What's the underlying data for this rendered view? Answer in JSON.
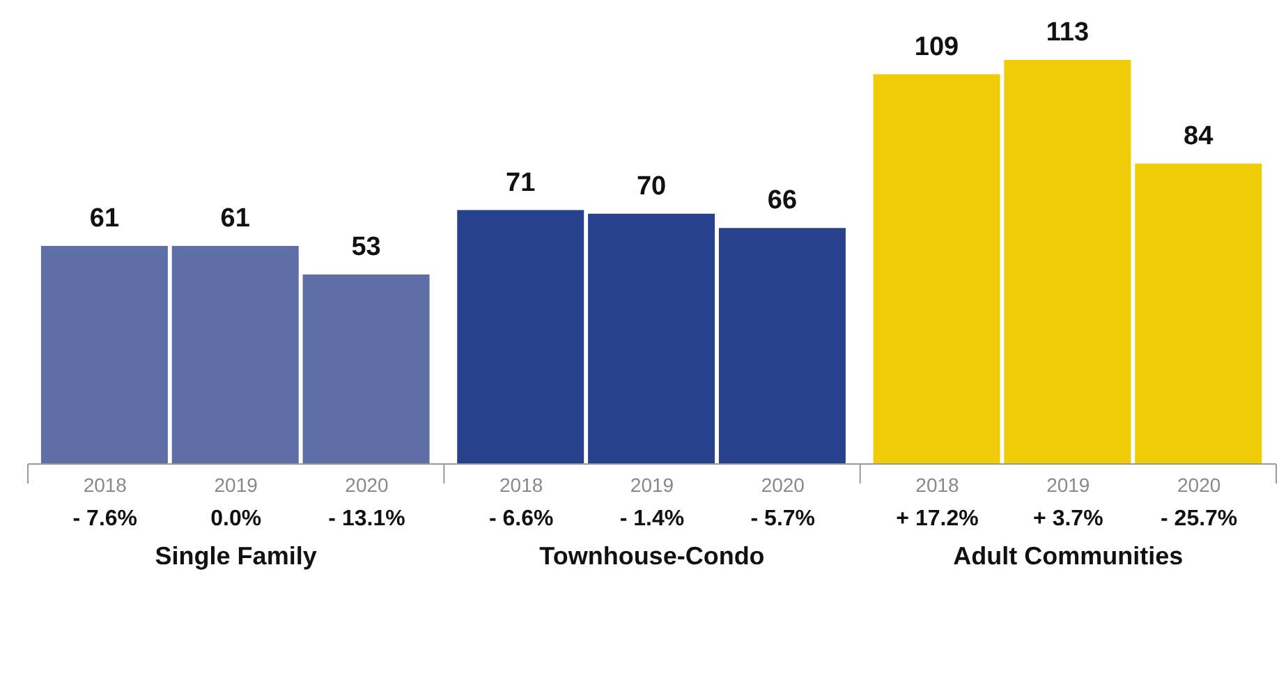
{
  "chart_data": {
    "type": "bar",
    "categories": [
      "2018",
      "2019",
      "2020",
      "2018",
      "2019",
      "2020",
      "2018",
      "2019",
      "2020"
    ],
    "values": [
      61,
      61,
      53,
      71,
      70,
      66,
      109,
      113,
      84
    ],
    "colors": [
      "#5e6fa8",
      "#5e6fa8",
      "#5e6fa8",
      "#27418c",
      "#27418c",
      "#27418c",
      "#f0cb08",
      "#f0cb08",
      "#f0cb08"
    ],
    "data_labels": true,
    "annotations": [
      "- 7.6%",
      "0.0%",
      "- 13.1%",
      "- 6.6%",
      "- 1.4%",
      "- 5.7%",
      "+ 17.2%",
      "+ 3.7%",
      "- 25.7%",
      "Single Family",
      "Townhouse-Condo",
      "Adult Communities"
    ]
  }
}
